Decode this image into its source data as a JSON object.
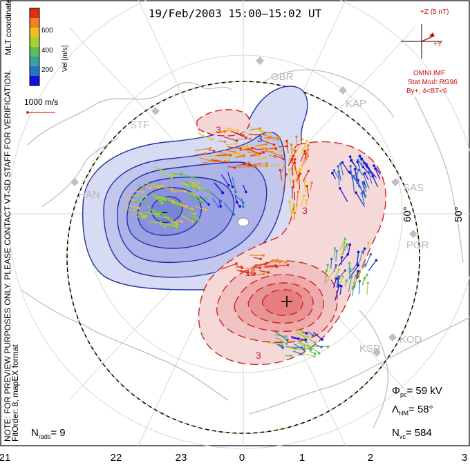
{
  "title": "19/Feb/2003 15:00–15:02 UT",
  "side_note_line1": "NOTE: FOR PREVIEW PURPOSES ONLY. PLEASE CONTACT VT-SD STAFF FOR VERIFICATION.",
  "side_note_line2": "FitOrder: 8, mapEX format",
  "coordinates_label": "MLT coordinates",
  "velocity_scale": {
    "unit_label": "Vel [m/s]",
    "ticks": [
      "200",
      "400",
      "600"
    ],
    "colors": [
      "#1010e0",
      "#2a70c8",
      "#3aa0a0",
      "#5bc05b",
      "#a8d030",
      "#f0c020",
      "#f08020",
      "#e03010"
    ]
  },
  "reference_vector_label": "1000 m/s",
  "imf": {
    "scale_label": "+Z (5 nT)",
    "y_label": "+Y",
    "source": "OMNI IMF",
    "model": "Stat Mod: RG96",
    "condition": "By+, 4<BT<6"
  },
  "stations": [
    "GBR",
    "KAP",
    "STF",
    "HAN",
    "SAS",
    "PGR",
    "KOD",
    "KSR"
  ],
  "latitude_labels": [
    "60°",
    "50°"
  ],
  "mlt_labels": [
    "21",
    "22",
    "23",
    "0",
    "1",
    "2",
    "3"
  ],
  "stats": {
    "phi_pc": "= 59 kV",
    "lambda_hm": "= 58°",
    "n_vc": "= 584",
    "n_rads": "= 9"
  },
  "contour_labels": [
    "3",
    "15",
    "3",
    "3",
    "3"
  ],
  "colors": {
    "negative_fill": "#c8cdf0",
    "negative_core": "#8890e0",
    "negative_line": "#2030a0",
    "positive_fill": "#f5d0d0",
    "positive_core": "#e88888",
    "positive_line": "#d02020",
    "map_coast": "#bdbdbd"
  }
}
